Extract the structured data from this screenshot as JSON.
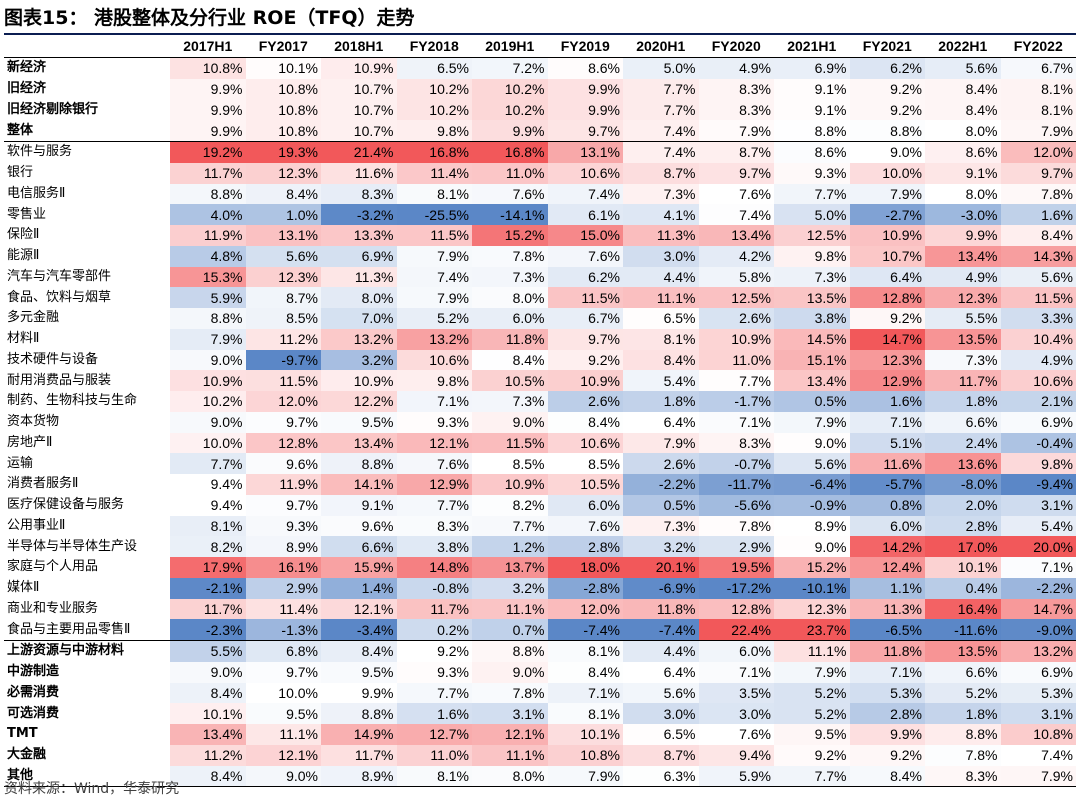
{
  "title": "图表15： 港股整体及分行业 ROE（TFQ）走势",
  "source": "资料来源：Wind，华泰研究",
  "columns": [
    "2017H1",
    "FY2017",
    "2018H1",
    "FY2018",
    "2019H1",
    "FY2019",
    "2020H1",
    "FY2020",
    "2021H1",
    "FY2021",
    "2022H1",
    "FY2022"
  ],
  "rows": [
    {
      "label": "新经济",
      "bold": true,
      "values": [
        10.8,
        10.1,
        10.9,
        6.5,
        7.2,
        8.6,
        5.0,
        4.9,
        6.9,
        6.2,
        5.6,
        6.7
      ]
    },
    {
      "label": "旧经济",
      "bold": true,
      "values": [
        9.9,
        10.8,
        10.7,
        10.2,
        10.2,
        9.9,
        7.7,
        8.3,
        9.1,
        9.2,
        8.4,
        8.1
      ]
    },
    {
      "label": "旧经济剔除银行",
      "bold": true,
      "values": [
        9.9,
        10.8,
        10.7,
        10.2,
        10.2,
        9.9,
        7.7,
        8.3,
        9.1,
        9.2,
        8.4,
        8.1
      ]
    },
    {
      "label": "整体",
      "bold": true,
      "values": [
        9.9,
        10.8,
        10.7,
        9.8,
        9.9,
        9.7,
        7.4,
        7.9,
        8.8,
        8.8,
        8.0,
        7.9
      ]
    },
    {
      "label": "软件与服务",
      "bold": false,
      "sep": true,
      "values": [
        19.2,
        19.3,
        21.4,
        16.8,
        16.8,
        13.1,
        7.4,
        8.7,
        8.6,
        9.0,
        8.6,
        12.0
      ]
    },
    {
      "label": "银行",
      "bold": false,
      "values": [
        11.7,
        12.3,
        11.6,
        11.4,
        11.0,
        10.6,
        8.7,
        9.7,
        9.3,
        10.0,
        9.1,
        9.7
      ]
    },
    {
      "label": "电信服务Ⅱ",
      "bold": false,
      "values": [
        8.8,
        8.4,
        8.3,
        8.1,
        7.6,
        7.4,
        7.3,
        7.6,
        7.7,
        7.9,
        8.0,
        7.8
      ]
    },
    {
      "label": "零售业",
      "bold": false,
      "values": [
        4.0,
        1.0,
        -3.2,
        -25.5,
        -14.1,
        6.1,
        4.1,
        7.4,
        5.0,
        -2.7,
        -3.0,
        1.6
      ]
    },
    {
      "label": "保险Ⅱ",
      "bold": false,
      "values": [
        11.9,
        13.1,
        13.3,
        11.5,
        15.2,
        15.0,
        11.3,
        13.4,
        12.5,
        10.9,
        9.9,
        8.4
      ]
    },
    {
      "label": "能源Ⅱ",
      "bold": false,
      "values": [
        4.8,
        5.6,
        6.9,
        7.9,
        7.8,
        7.6,
        3.0,
        4.2,
        9.8,
        10.7,
        13.4,
        14.3
      ]
    },
    {
      "label": "汽车与汽车零部件",
      "bold": false,
      "values": [
        15.3,
        12.3,
        11.3,
        7.4,
        7.3,
        6.2,
        4.4,
        5.8,
        7.3,
        6.4,
        4.9,
        5.6
      ]
    },
    {
      "label": "食品、饮料与烟草",
      "bold": false,
      "values": [
        5.9,
        8.7,
        8.0,
        7.9,
        8.0,
        11.5,
        11.1,
        12.5,
        13.5,
        12.8,
        12.3,
        11.5
      ]
    },
    {
      "label": "多元金融",
      "bold": false,
      "values": [
        8.8,
        8.5,
        7.0,
        5.2,
        6.0,
        6.7,
        6.5,
        2.6,
        3.8,
        9.2,
        5.5,
        3.3
      ]
    },
    {
      "label": "材料Ⅱ",
      "bold": false,
      "values": [
        7.9,
        11.2,
        13.2,
        13.2,
        11.8,
        9.7,
        8.1,
        10.9,
        14.5,
        14.7,
        13.5,
        10.4
      ]
    },
    {
      "label": "技术硬件与设备",
      "bold": false,
      "values": [
        9.0,
        -9.7,
        3.2,
        10.6,
        8.4,
        9.2,
        8.4,
        11.0,
        15.1,
        12.3,
        7.3,
        4.9
      ]
    },
    {
      "label": "耐用消费品与服装",
      "bold": false,
      "values": [
        10.9,
        11.5,
        10.9,
        9.8,
        10.5,
        10.9,
        5.4,
        7.7,
        13.4,
        12.9,
        11.7,
        10.6
      ]
    },
    {
      "label": "制药、生物科技与生命",
      "bold": false,
      "values": [
        10.2,
        12.0,
        12.2,
        7.1,
        7.3,
        2.6,
        1.8,
        -1.7,
        0.5,
        1.6,
        1.8,
        2.1
      ]
    },
    {
      "label": "资本货物",
      "bold": false,
      "values": [
        9.0,
        9.7,
        9.5,
        9.3,
        9.0,
        8.4,
        6.4,
        7.1,
        7.9,
        7.1,
        6.6,
        6.9
      ]
    },
    {
      "label": "房地产Ⅱ",
      "bold": false,
      "values": [
        10.0,
        12.8,
        13.4,
        12.1,
        11.5,
        10.6,
        7.9,
        8.3,
        9.0,
        5.1,
        2.4,
        -0.4
      ]
    },
    {
      "label": "运输",
      "bold": false,
      "values": [
        7.7,
        9.6,
        8.8,
        7.6,
        8.5,
        8.5,
        2.6,
        -0.7,
        5.6,
        11.6,
        13.6,
        9.8
      ]
    },
    {
      "label": "消费者服务Ⅱ",
      "bold": false,
      "values": [
        9.4,
        11.9,
        14.1,
        12.9,
        10.9,
        10.5,
        -2.2,
        -11.7,
        -6.4,
        -5.7,
        -8.0,
        -9.4
      ]
    },
    {
      "label": "医疗保健设备与服务",
      "bold": false,
      "values": [
        9.4,
        9.7,
        9.1,
        7.7,
        8.2,
        6.0,
        0.5,
        -5.6,
        -0.9,
        0.8,
        2.0,
        3.1
      ]
    },
    {
      "label": "公用事业Ⅱ",
      "bold": false,
      "values": [
        8.1,
        9.3,
        9.6,
        8.3,
        7.7,
        7.6,
        7.3,
        7.8,
        8.9,
        6.0,
        2.8,
        5.4
      ]
    },
    {
      "label": "半导体与半导体生产设",
      "bold": false,
      "values": [
        8.2,
        8.9,
        6.6,
        3.8,
        1.2,
        2.8,
        3.2,
        2.9,
        9.0,
        14.2,
        17.0,
        20.0
      ]
    },
    {
      "label": "家庭与个人用品",
      "bold": false,
      "values": [
        17.9,
        16.1,
        15.9,
        14.8,
        13.7,
        18.0,
        20.1,
        19.5,
        15.2,
        12.4,
        10.1,
        7.1
      ]
    },
    {
      "label": "媒体Ⅱ",
      "bold": false,
      "values": [
        -2.1,
        2.9,
        1.4,
        -0.8,
        3.2,
        -2.8,
        -6.9,
        -17.2,
        -10.1,
        1.1,
        0.4,
        -2.2
      ]
    },
    {
      "label": "商业和专业服务",
      "bold": false,
      "values": [
        11.7,
        11.4,
        12.1,
        11.7,
        11.1,
        12.0,
        11.8,
        12.8,
        12.3,
        11.3,
        16.4,
        14.7
      ]
    },
    {
      "label": "食品与主要用品零售Ⅱ",
      "bold": false,
      "values": [
        -2.3,
        -1.3,
        -3.4,
        0.2,
        0.7,
        -7.4,
        -7.4,
        22.4,
        23.7,
        -6.5,
        -11.6,
        -9.0
      ]
    },
    {
      "label": "上游资源与中游材料",
      "bold": true,
      "sep": true,
      "values": [
        5.5,
        6.8,
        8.4,
        9.2,
        8.8,
        8.1,
        4.4,
        6.0,
        11.1,
        11.8,
        13.5,
        13.2
      ]
    },
    {
      "label": "中游制造",
      "bold": true,
      "values": [
        9.0,
        9.7,
        9.5,
        9.3,
        9.0,
        8.4,
        6.4,
        7.1,
        7.9,
        7.1,
        6.6,
        6.9
      ]
    },
    {
      "label": "必需消费",
      "bold": true,
      "values": [
        8.4,
        10.0,
        9.9,
        7.7,
        7.8,
        7.1,
        5.6,
        3.5,
        5.2,
        5.3,
        5.2,
        5.3
      ]
    },
    {
      "label": "可选消费",
      "bold": true,
      "values": [
        10.1,
        9.5,
        8.8,
        1.6,
        3.1,
        8.1,
        3.0,
        3.0,
        5.2,
        2.8,
        1.8,
        3.1
      ]
    },
    {
      "label": "TMT",
      "bold": true,
      "values": [
        13.4,
        11.1,
        14.9,
        12.7,
        12.1,
        10.1,
        6.5,
        7.6,
        9.5,
        9.9,
        8.8,
        10.8
      ]
    },
    {
      "label": "大金融",
      "bold": true,
      "values": [
        11.2,
        12.1,
        11.7,
        11.0,
        11.1,
        10.8,
        8.7,
        9.4,
        9.2,
        9.2,
        7.8,
        7.4
      ]
    },
    {
      "label": "其他",
      "bold": true,
      "values": [
        8.4,
        9.0,
        8.9,
        8.1,
        8.0,
        7.9,
        6.3,
        5.9,
        7.7,
        8.4,
        8.3,
        7.9
      ]
    }
  ],
  "heatmap_colors": {
    "low": "#5b87c7",
    "mid": "#ffffff",
    "high": "#f2585a"
  }
}
